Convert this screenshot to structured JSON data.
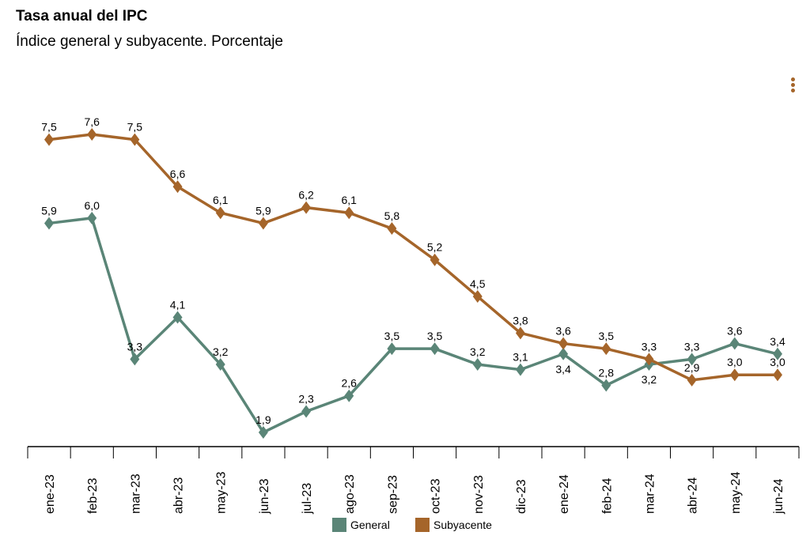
{
  "chart_data": {
    "type": "line",
    "title": "Tasa anual del IPC",
    "subtitle": "Índice general y subyacente. Porcentaje",
    "categories": [
      "ene-23",
      "feb-23",
      "mar-23",
      "abr-23",
      "may-23",
      "jun-23",
      "jul-23",
      "ago-23",
      "sep-23",
      "oct-23",
      "nov-23",
      "dic-23",
      "ene-24",
      "feb-24",
      "mar-24",
      "abr-24",
      "may-24",
      "jun-24"
    ],
    "series": [
      {
        "name": "General",
        "color": "#5a8577",
        "values": [
          5.9,
          6.0,
          3.3,
          4.1,
          3.2,
          1.9,
          2.3,
          2.6,
          3.5,
          3.5,
          3.2,
          3.1,
          3.4,
          2.8,
          3.2,
          3.3,
          3.6,
          3.4
        ]
      },
      {
        "name": "Subyacente",
        "color": "#a5652a",
        "values": [
          7.5,
          7.6,
          7.5,
          6.6,
          6.1,
          5.9,
          6.2,
          6.1,
          5.8,
          5.2,
          4.5,
          3.8,
          3.6,
          3.5,
          3.3,
          2.9,
          3.0,
          3.0
        ]
      }
    ],
    "marker": "diamond",
    "data_labels": true,
    "decimal_separator": ",",
    "grid": false,
    "legend": "bottom"
  },
  "menu_icon": "vertical-dots-icon"
}
